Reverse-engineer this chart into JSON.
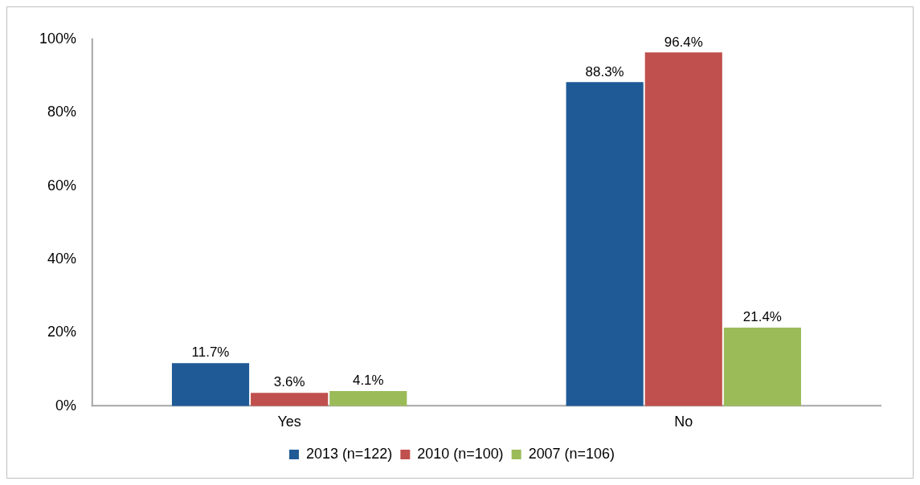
{
  "chart_data": {
    "type": "bar",
    "categories": [
      "Yes",
      "No"
    ],
    "series": [
      {
        "name": "2013 (n=122)",
        "color": "#1f5a96",
        "values": [
          11.7,
          88.3
        ],
        "value_labels": [
          "11.7%",
          "88.3%"
        ]
      },
      {
        "name": "2010 (n=100)",
        "color": "#c0504d",
        "values": [
          3.6,
          96.4
        ],
        "value_labels": [
          "3.6%",
          "96.4%"
        ]
      },
      {
        "name": "2007 (n=106)",
        "color": "#9bbb59",
        "values": [
          4.1,
          21.4
        ],
        "value_labels": [
          "4.1%",
          "21.4%"
        ]
      }
    ],
    "ylim": [
      0,
      100
    ],
    "yticks": [
      {
        "value": 0,
        "label": "0%"
      },
      {
        "value": 20,
        "label": "20%"
      },
      {
        "value": 40,
        "label": "40%"
      },
      {
        "value": 60,
        "label": "60%"
      },
      {
        "value": 80,
        "label": "80%"
      },
      {
        "value": 100,
        "label": "100%"
      }
    ],
    "grid": false,
    "legend": "bottom"
  }
}
